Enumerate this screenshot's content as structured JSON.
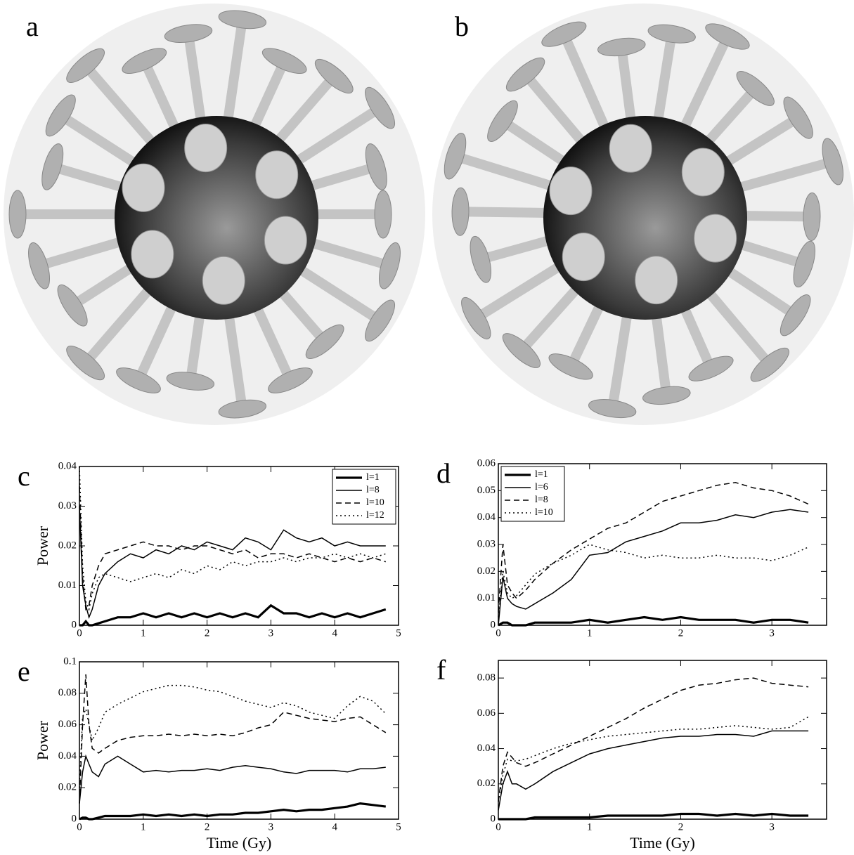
{
  "image_panels": [
    {
      "label": "a"
    },
    {
      "label": "b"
    }
  ],
  "chart_data": [
    {
      "type": "line",
      "panel_label": "c",
      "y_label": "Power",
      "legend": "upper right",
      "xlim": [
        0,
        5
      ],
      "xticks": [
        0,
        1,
        2,
        3,
        4,
        5
      ],
      "ylim": [
        0,
        0.04
      ],
      "yticks": [
        0,
        0.01,
        0.02,
        0.03,
        0.04
      ],
      "x": [
        0,
        0.05,
        0.1,
        0.15,
        0.2,
        0.3,
        0.4,
        0.6,
        0.8,
        1,
        1.2,
        1.4,
        1.6,
        1.8,
        2,
        2.2,
        2.4,
        2.6,
        2.8,
        3,
        3.2,
        3.4,
        3.6,
        3.8,
        4,
        4.2,
        4.4,
        4.6,
        4.8
      ],
      "series": [
        {
          "name": "l=1",
          "color": "#000",
          "style": "thick",
          "values": [
            0,
            0,
            0.001,
            0,
            0,
            0.0005,
            0.001,
            0.002,
            0.002,
            0.003,
            0.002,
            0.003,
            0.002,
            0.003,
            0.002,
            0.003,
            0.002,
            0.003,
            0.002,
            0.005,
            0.003,
            0.003,
            0.002,
            0.003,
            0.002,
            0.003,
            0.002,
            0.003,
            0.004
          ]
        },
        {
          "name": "l=8",
          "color": "#000",
          "style": "solid",
          "values": [
            0.03,
            0.01,
            0.005,
            0.002,
            0.004,
            0.01,
            0.013,
            0.016,
            0.018,
            0.017,
            0.019,
            0.018,
            0.02,
            0.019,
            0.021,
            0.02,
            0.019,
            0.022,
            0.021,
            0.019,
            0.024,
            0.022,
            0.021,
            0.022,
            0.02,
            0.021,
            0.02,
            0.02,
            0.02
          ]
        },
        {
          "name": "l=10",
          "color": "#000",
          "style": "dashed",
          "values": [
            0.035,
            0.012,
            0.004,
            0.005,
            0.01,
            0.015,
            0.018,
            0.019,
            0.02,
            0.021,
            0.02,
            0.02,
            0.019,
            0.02,
            0.02,
            0.019,
            0.018,
            0.019,
            0.017,
            0.018,
            0.018,
            0.017,
            0.018,
            0.017,
            0.016,
            0.017,
            0.016,
            0.017,
            0.016
          ]
        },
        {
          "name": "l=12",
          "color": "#000",
          "style": "dotted",
          "values": [
            0.04,
            0.015,
            0.006,
            0.004,
            0.008,
            0.012,
            0.013,
            0.012,
            0.011,
            0.012,
            0.013,
            0.012,
            0.014,
            0.013,
            0.015,
            0.014,
            0.016,
            0.015,
            0.016,
            0.016,
            0.017,
            0.016,
            0.017,
            0.017,
            0.018,
            0.017,
            0.018,
            0.017,
            0.018
          ]
        }
      ]
    },
    {
      "type": "line",
      "panel_label": "d",
      "legend": "upper left",
      "xlim": [
        0,
        3.6
      ],
      "xticks": [
        0,
        1,
        2,
        3
      ],
      "ylim": [
        0,
        0.06
      ],
      "yticks": [
        0,
        0.01,
        0.02,
        0.03,
        0.04,
        0.05,
        0.06
      ],
      "x": [
        0,
        0.05,
        0.1,
        0.15,
        0.2,
        0.3,
        0.4,
        0.6,
        0.8,
        1,
        1.2,
        1.4,
        1.6,
        1.8,
        2,
        2.2,
        2.4,
        2.6,
        2.8,
        3,
        3.2,
        3.4
      ],
      "series": [
        {
          "name": "l=1",
          "color": "#000",
          "style": "thick",
          "values": [
            0,
            0.001,
            0.001,
            0,
            0,
            0,
            0.001,
            0.001,
            0.001,
            0.002,
            0.001,
            0.002,
            0.003,
            0.002,
            0.003,
            0.002,
            0.002,
            0.002,
            0.001,
            0.002,
            0.002,
            0.001
          ]
        },
        {
          "name": "l=6",
          "color": "#000",
          "style": "solid",
          "values": [
            0,
            0.018,
            0.01,
            0.008,
            0.007,
            0.006,
            0.008,
            0.012,
            0.017,
            0.026,
            0.027,
            0.031,
            0.033,
            0.035,
            0.038,
            0.038,
            0.039,
            0.041,
            0.04,
            0.042,
            0.043,
            0.042
          ]
        },
        {
          "name": "l=8",
          "color": "#000",
          "style": "dashed",
          "values": [
            0.005,
            0.03,
            0.015,
            0.012,
            0.01,
            0.013,
            0.017,
            0.023,
            0.028,
            0.032,
            0.036,
            0.038,
            0.042,
            0.046,
            0.048,
            0.05,
            0.052,
            0.053,
            0.051,
            0.05,
            0.048,
            0.045
          ]
        },
        {
          "name": "l=10",
          "color": "#000",
          "style": "dotted",
          "values": [
            0.003,
            0.02,
            0.012,
            0.01,
            0.011,
            0.015,
            0.019,
            0.023,
            0.026,
            0.03,
            0.028,
            0.027,
            0.025,
            0.026,
            0.025,
            0.025,
            0.026,
            0.025,
            0.025,
            0.024,
            0.026,
            0.029
          ]
        }
      ]
    },
    {
      "type": "line",
      "panel_label": "e",
      "y_label": "Power",
      "x_label": "Time (Gy)",
      "xlim": [
        0,
        5
      ],
      "xticks": [
        0,
        1,
        2,
        3,
        4,
        5
      ],
      "ylim": [
        0,
        0.1
      ],
      "yticks": [
        0,
        0.02,
        0.04,
        0.06,
        0.08,
        0.1
      ],
      "x": [
        0,
        0.05,
        0.1,
        0.15,
        0.2,
        0.3,
        0.4,
        0.6,
        0.8,
        1,
        1.2,
        1.4,
        1.6,
        1.8,
        2,
        2.2,
        2.4,
        2.6,
        2.8,
        3,
        3.2,
        3.4,
        3.6,
        3.8,
        4,
        4.2,
        4.4,
        4.6,
        4.8
      ],
      "series": [
        {
          "color": "#000",
          "style": "thick",
          "values": [
            0,
            0.001,
            0.001,
            0,
            0,
            0.001,
            0.002,
            0.002,
            0.002,
            0.003,
            0.002,
            0.003,
            0.002,
            0.003,
            0.002,
            0.003,
            0.003,
            0.004,
            0.004,
            0.005,
            0.006,
            0.005,
            0.006,
            0.006,
            0.007,
            0.008,
            0.01,
            0.009,
            0.008
          ]
        },
        {
          "color": "#000",
          "style": "solid",
          "values": [
            0.01,
            0.03,
            0.04,
            0.035,
            0.03,
            0.027,
            0.035,
            0.04,
            0.035,
            0.03,
            0.031,
            0.03,
            0.031,
            0.031,
            0.032,
            0.031,
            0.033,
            0.034,
            0.033,
            0.032,
            0.03,
            0.029,
            0.031,
            0.031,
            0.031,
            0.03,
            0.032,
            0.032,
            0.033
          ]
        },
        {
          "color": "#000",
          "style": "dashed",
          "values": [
            0.01,
            0.06,
            0.092,
            0.06,
            0.045,
            0.042,
            0.045,
            0.05,
            0.052,
            0.053,
            0.053,
            0.054,
            0.053,
            0.054,
            0.053,
            0.054,
            0.053,
            0.055,
            0.058,
            0.06,
            0.068,
            0.066,
            0.064,
            0.063,
            0.062,
            0.064,
            0.065,
            0.06,
            0.055
          ]
        },
        {
          "color": "#000",
          "style": "dotted",
          "values": [
            0.02,
            0.065,
            0.07,
            0.06,
            0.05,
            0.058,
            0.068,
            0.073,
            0.077,
            0.081,
            0.083,
            0.085,
            0.085,
            0.084,
            0.082,
            0.081,
            0.078,
            0.075,
            0.073,
            0.071,
            0.074,
            0.072,
            0.068,
            0.066,
            0.064,
            0.072,
            0.078,
            0.075,
            0.067
          ]
        }
      ]
    },
    {
      "type": "line",
      "panel_label": "f",
      "x_label": "Time (Gy)",
      "xlim": [
        0,
        3.6
      ],
      "xticks": [
        0,
        1,
        2,
        3
      ],
      "ylim": [
        0,
        0.09
      ],
      "yticks": [
        0,
        0.02,
        0.04,
        0.06,
        0.08
      ],
      "x": [
        0,
        0.05,
        0.1,
        0.15,
        0.2,
        0.3,
        0.4,
        0.6,
        0.8,
        1,
        1.2,
        1.4,
        1.6,
        1.8,
        2,
        2.2,
        2.4,
        2.6,
        2.8,
        3,
        3.2,
        3.4
      ],
      "series": [
        {
          "color": "#000",
          "style": "thick",
          "values": [
            0,
            0,
            0,
            0,
            0,
            0,
            0.001,
            0.001,
            0.001,
            0.001,
            0.002,
            0.002,
            0.002,
            0.002,
            0.003,
            0.003,
            0.002,
            0.003,
            0.002,
            0.003,
            0.002,
            0.002
          ]
        },
        {
          "color": "#000",
          "style": "solid",
          "values": [
            0.005,
            0.02,
            0.027,
            0.02,
            0.02,
            0.017,
            0.02,
            0.027,
            0.032,
            0.037,
            0.04,
            0.042,
            0.044,
            0.046,
            0.047,
            0.047,
            0.048,
            0.048,
            0.047,
            0.05,
            0.05,
            0.05
          ]
        },
        {
          "color": "#000",
          "style": "dashed",
          "values": [
            0.01,
            0.03,
            0.038,
            0.035,
            0.032,
            0.03,
            0.032,
            0.037,
            0.042,
            0.047,
            0.052,
            0.057,
            0.063,
            0.068,
            0.073,
            0.076,
            0.077,
            0.079,
            0.08,
            0.077,
            0.076,
            0.075
          ]
        },
        {
          "color": "#000",
          "style": "dotted",
          "values": [
            0.01,
            0.025,
            0.034,
            0.033,
            0.033,
            0.034,
            0.036,
            0.04,
            0.043,
            0.045,
            0.047,
            0.048,
            0.049,
            0.05,
            0.051,
            0.051,
            0.052,
            0.053,
            0.052,
            0.051,
            0.052,
            0.058
          ]
        }
      ]
    }
  ]
}
